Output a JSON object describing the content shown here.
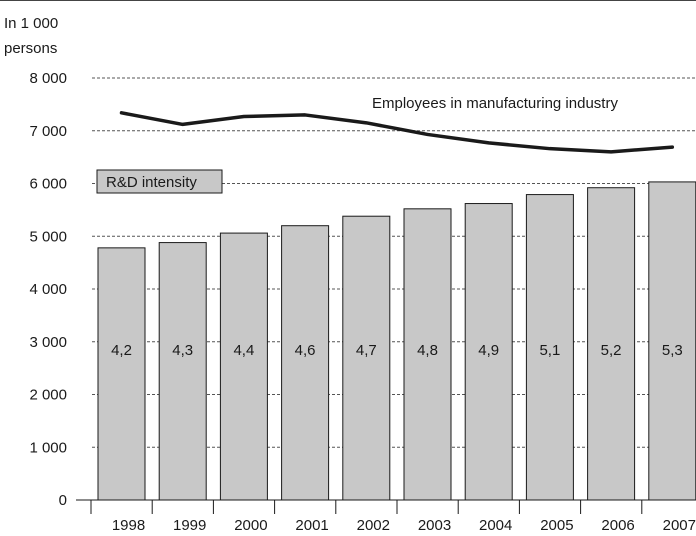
{
  "chart_data": {
    "type": "bar",
    "unit_line1": "In 1 000",
    "unit_line2": "persons",
    "categories": [
      "1998",
      "1999",
      "2000",
      "2001",
      "2002",
      "2003",
      "2004",
      "2005",
      "2006",
      "2007"
    ],
    "y_ticks": [
      "0",
      "1 000",
      "2 000",
      "3 000",
      "4 000",
      "5 000",
      "6 000",
      "7 000",
      "8 000"
    ],
    "ylim": [
      0,
      8000
    ],
    "grid": "dashed horizontal",
    "series": [
      {
        "name": "R&D intensity",
        "kind": "bar",
        "values": [
          4780,
          4880,
          5060,
          5200,
          5380,
          5520,
          5620,
          5790,
          5920,
          6030
        ],
        "data_labels": [
          "4,2",
          "4,3",
          "4,4",
          "4,6",
          "4,7",
          "4,8",
          "4,9",
          "5,1",
          "5,2",
          "5,3"
        ],
        "color": "#c8c8c8"
      },
      {
        "name": "Employees in manufacturing industry",
        "kind": "line",
        "values": [
          7340,
          7120,
          7270,
          7300,
          7150,
          6930,
          6770,
          6660,
          6600,
          6690
        ],
        "color": "#1a1a1a"
      }
    ]
  }
}
